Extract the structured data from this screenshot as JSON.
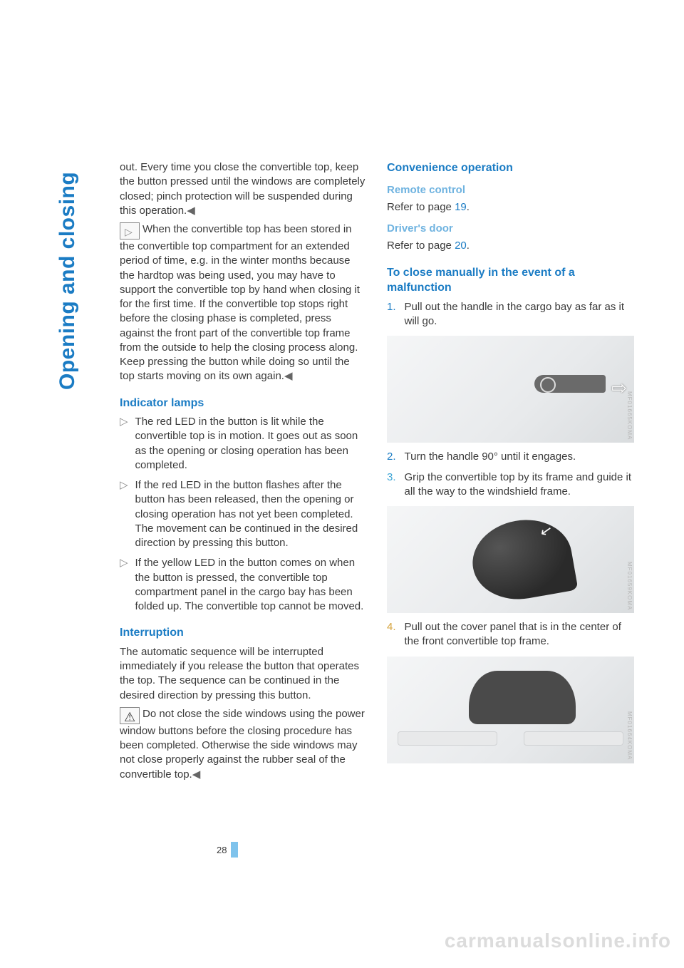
{
  "side_title": "Opening and closing",
  "page_number": "28",
  "watermark": "carmanualsonline.info",
  "colors": {
    "heading": "#1b7cc4",
    "subheading": "#6fb3e0",
    "body_text": "#3a3a3a",
    "link": "#1b7cc4",
    "page_bar": "#7fc3ec",
    "figure_bg_from": "#f5f6f7",
    "figure_bg_to": "#d9dcde",
    "ol_1": "#1b7cc4",
    "ol_2": "#1b7cc4",
    "ol_3": "#3fa6d6",
    "ol_4": "#d6a43f"
  },
  "left": {
    "p1": "out. Every time you close the convertible top, keep the button pressed until the windows are completely closed; pinch protection will be suspended during this operation.",
    "p2": "When the convertible top has been stored in the convertible top compartment for an extended period of time, e.g. in the winter months because the hardtop was being used, you may have to support the convertible top by hand when closing it for the first time. If the convertible top stops right before the closing phase is completed, press against the front part of the convertible top frame from the outside to help the closing process along. Keep pressing the button while doing so until the top starts moving on its own again.",
    "h_indicator": "Indicator lamps",
    "bullets": [
      "The red LED in the button is lit while the convertible top is in motion. It goes out as soon as the opening or closing operation has been completed.",
      "If the red LED in the button flashes after the button has been released, then the opening or closing operation has not yet been completed.\nThe movement can be continued in the desired direction by pressing this button.",
      "If the yellow LED in the button comes on when the button is pressed, the convertible top compartment panel in the cargo bay has been folded up. The convertible top cannot be moved."
    ],
    "h_interruption": "Interruption",
    "p_interrupt": "The automatic sequence will be interrupted immediately if you release the button that operates the top. The sequence can be continued in the desired direction by pressing this button.",
    "p_warn": "Do not close the side windows using the power window buttons before the closing procedure has been completed. Otherwise the side windows may not close properly against the rubber seal of the convertible top."
  },
  "right": {
    "h_conv": "Convenience operation",
    "h_remote": "Remote control",
    "p_remote_a": "Refer to page ",
    "p_remote_link": "19",
    "p_remote_b": ".",
    "h_driver": "Driver's door",
    "p_driver_a": "Refer to page ",
    "p_driver_link": "20",
    "p_driver_b": ".",
    "h_manual": "To close manually in the event of a malfunction",
    "step1_num": "1.",
    "step1": "Pull out the handle in the cargo bay as far as it will go.",
    "step2_num": "2.",
    "step2": "Turn the handle 90° until it engages.",
    "step3_num": "3.",
    "step3": "Grip the convertible top by its frame and guide it all the way to the windshield frame.",
    "step4_num": "4.",
    "step4": "Pull out the cover panel that is in the center of the front convertible top frame.",
    "fig_labels": [
      "MF01665KOMA",
      "MF01659KOMA",
      "MF01664KOMA"
    ]
  }
}
